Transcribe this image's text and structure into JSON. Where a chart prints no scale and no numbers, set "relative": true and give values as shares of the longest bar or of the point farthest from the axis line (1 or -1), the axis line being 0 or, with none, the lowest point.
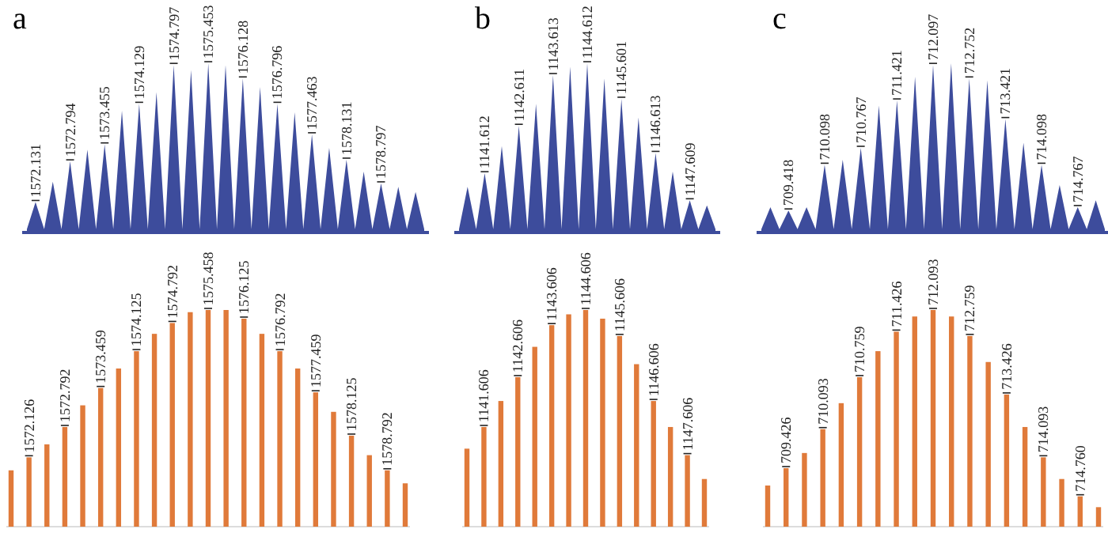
{
  "chart_data": [
    {
      "type": "area",
      "title": "a",
      "relative": true,
      "color": "#3d4c9c",
      "categories": [
        null,
        "1572.131",
        null,
        null,
        null,
        "1572.794",
        null,
        null,
        null,
        "1573.455",
        null,
        null,
        null,
        "1574.129",
        null,
        null,
        null,
        "1574.797",
        null,
        null,
        null,
        "1575.453",
        null,
        null,
        null,
        "1576.128",
        null,
        null,
        null,
        "1576.796",
        null,
        null,
        null,
        "1577.463",
        null,
        null,
        null,
        "1578.131",
        null,
        null,
        null,
        "1578.797",
        null,
        null,
        null,
        null,
        null
      ],
      "values": [
        0.02,
        0.18,
        0.02,
        0.3,
        0.02,
        0.42,
        0.02,
        0.49,
        0.02,
        0.52,
        0.02,
        0.72,
        0.02,
        0.76,
        0.02,
        0.83,
        0.02,
        0.99,
        0.02,
        0.96,
        0.02,
        1,
        0.02,
        0.99,
        0.02,
        0.91,
        0.02,
        0.86,
        0.02,
        0.76,
        0.02,
        0.71,
        0.02,
        0.58,
        0.02,
        0.5,
        0.02,
        0.43,
        0.02,
        0.36,
        0.02,
        0.29,
        0.02,
        0.27,
        0.02,
        0.24,
        0.02
      ]
    },
    {
      "type": "area",
      "title": "b",
      "relative": true,
      "color": "#3d4c9c",
      "categories": [
        null,
        null,
        null,
        "1141.612",
        null,
        null,
        null,
        "1142.611",
        null,
        null,
        null,
        "1143.613",
        null,
        null,
        null,
        "1144.612",
        null,
        null,
        null,
        "1145.601",
        null,
        null,
        null,
        "1146.613",
        null,
        null,
        null,
        "1147.609",
        null,
        null,
        null
      ],
      "values": [
        0.02,
        0.27,
        0.02,
        0.35,
        0.02,
        0.51,
        0.02,
        0.63,
        0.02,
        0.76,
        0.02,
        0.93,
        0.02,
        0.98,
        0.02,
        1,
        0.02,
        0.91,
        0.02,
        0.79,
        0.02,
        0.68,
        0.02,
        0.47,
        0.02,
        0.36,
        0.02,
        0.19,
        0.02,
        0.16,
        0.02
      ]
    },
    {
      "type": "area",
      "title": "c",
      "relative": true,
      "color": "#3d4c9c",
      "categories": [
        null,
        null,
        null,
        "709.418",
        null,
        null,
        null,
        "710.098",
        null,
        null,
        null,
        "710.767",
        null,
        null,
        null,
        "711.421",
        null,
        null,
        null,
        "712.097",
        null,
        null,
        null,
        "712.752",
        null,
        null,
        null,
        "713.421",
        null,
        null,
        null,
        "714.098",
        null,
        null,
        null,
        "714.767",
        null,
        null,
        null
      ],
      "values": [
        0.02,
        0.15,
        0.02,
        0.13,
        0.02,
        0.15,
        0.02,
        0.4,
        0.02,
        0.43,
        0.02,
        0.5,
        0.02,
        0.75,
        0.02,
        0.78,
        0.02,
        0.92,
        0.02,
        0.99,
        0.02,
        1,
        0.02,
        0.91,
        0.02,
        0.9,
        0.02,
        0.67,
        0.02,
        0.53,
        0.02,
        0.4,
        0.02,
        0.28,
        0.02,
        0.15,
        0.02,
        0.19,
        0.02
      ]
    },
    {
      "type": "bar",
      "relative": true,
      "color": "#e07a3a",
      "categories": [
        null,
        "1572.126",
        null,
        "1572.792",
        null,
        "1573.459",
        null,
        "1574.125",
        null,
        "1574.792",
        null,
        "1575.458",
        null,
        "1576.125",
        null,
        "1576.792",
        null,
        "1577.459",
        null,
        "1578.125",
        null,
        "1578.792",
        null
      ],
      "values": [
        0.26,
        0.32,
        0.38,
        0.46,
        0.56,
        0.64,
        0.73,
        0.81,
        0.89,
        0.94,
        0.99,
        1,
        1,
        0.96,
        0.89,
        0.81,
        0.73,
        0.62,
        0.53,
        0.42,
        0.33,
        0.26,
        0.2
      ]
    },
    {
      "type": "bar",
      "relative": true,
      "color": "#e07a3a",
      "categories": [
        null,
        "1141.606",
        null,
        "1142.606",
        null,
        "1143.606",
        null,
        "1144.606",
        null,
        "1145.606",
        null,
        "1146.606",
        null,
        "1147.606",
        null
      ],
      "values": [
        0.36,
        0.46,
        0.58,
        0.69,
        0.83,
        0.93,
        0.98,
        1,
        0.96,
        0.88,
        0.75,
        0.58,
        0.46,
        0.33,
        0.22
      ]
    },
    {
      "type": "bar",
      "relative": true,
      "color": "#e07a3a",
      "categories": [
        null,
        "709.426",
        null,
        "710.093",
        null,
        "710.759",
        null,
        "711.426",
        null,
        "712.093",
        null,
        "712.759",
        null,
        "713.426",
        null,
        "714.093",
        null,
        "714.760",
        null
      ],
      "values": [
        0.19,
        0.27,
        0.34,
        0.45,
        0.57,
        0.69,
        0.81,
        0.9,
        0.97,
        1,
        0.97,
        0.88,
        0.76,
        0.61,
        0.46,
        0.32,
        0.22,
        0.14,
        0.09
      ]
    }
  ]
}
